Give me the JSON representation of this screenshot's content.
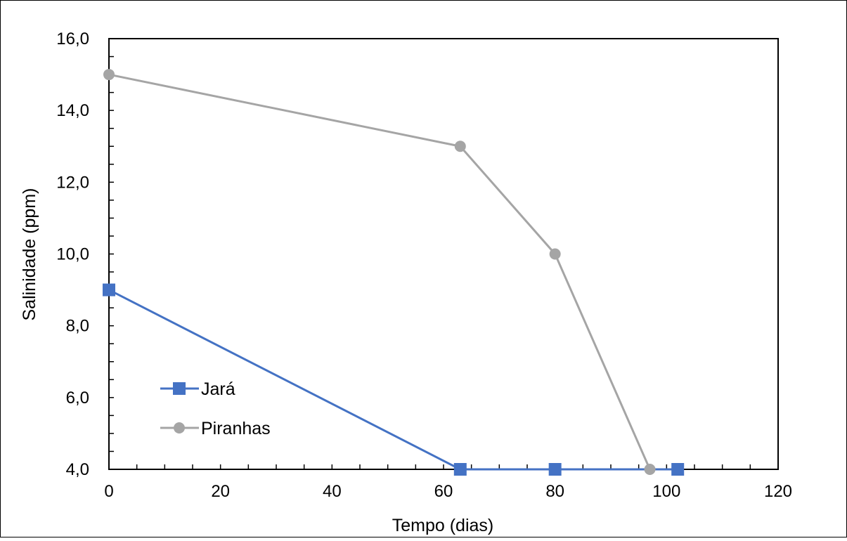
{
  "chart_data": {
    "type": "line",
    "title": "",
    "xlabel": "Tempo (dias)",
    "ylabel": "Salinidade (ppm)",
    "xlim": [
      0,
      120
    ],
    "ylim": [
      4,
      16
    ],
    "x_ticks": [
      0,
      20,
      40,
      60,
      80,
      100,
      120
    ],
    "y_ticks": [
      "4,0",
      "6,0",
      "8,0",
      "10,0",
      "12,0",
      "14,0",
      "16,0"
    ],
    "y_tick_values": [
      4,
      6,
      8,
      10,
      12,
      14,
      16
    ],
    "grid": false,
    "legend_position": "lower-left",
    "series": [
      {
        "name": "Jará",
        "color": "#4472C4",
        "marker": "square",
        "x": [
          0,
          63,
          80,
          102
        ],
        "y": [
          9,
          4,
          4,
          4
        ]
      },
      {
        "name": "Piranhas",
        "color": "#A5A5A5",
        "marker": "circle",
        "x": [
          0,
          63,
          80,
          97
        ],
        "y": [
          15,
          13,
          10,
          4
        ]
      }
    ]
  }
}
